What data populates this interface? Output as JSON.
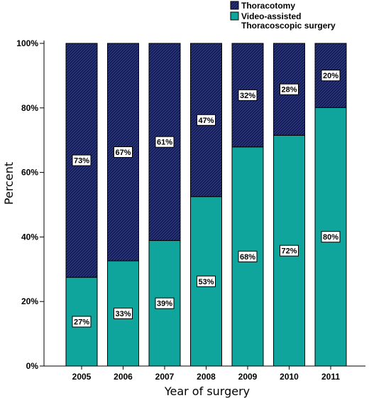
{
  "chart_data": {
    "type": "bar",
    "stacked": true,
    "percent_stacked": true,
    "categories": [
      "2005",
      "2006",
      "2007",
      "2008",
      "2009",
      "2010",
      "2011"
    ],
    "series": [
      {
        "name": "Video-assisted Thoracoscopic surgery",
        "legend_lines": [
          "Video-assisted",
          "Thoracoscopic surgery"
        ],
        "values": [
          27.5,
          32.6,
          38.9,
          52.5,
          67.9,
          71.5,
          80.1
        ],
        "labels": [
          "27%",
          "33%",
          "39%",
          "53%",
          "68%",
          "72%",
          "80%"
        ],
        "color": "#10a59c",
        "pattern": "solid"
      },
      {
        "name": "Thoracotomy",
        "legend_lines": [
          "Thoracotomy"
        ],
        "values": [
          72.5,
          67.4,
          61.1,
          47.5,
          32.1,
          28.5,
          19.9
        ],
        "labels": [
          "73%",
          "67%",
          "61%",
          "47%",
          "32%",
          "28%",
          "20%"
        ],
        "color": "#2a3580",
        "pattern": "diagonal-hatch"
      }
    ],
    "title": "",
    "xlabel": "Year of surgery",
    "ylabel": "Percent",
    "ylim": [
      0,
      100
    ],
    "yticks": [
      "0%",
      "20%",
      "40%",
      "60%",
      "80%",
      "100%"
    ],
    "grid": false,
    "legend_position": "top-right"
  }
}
